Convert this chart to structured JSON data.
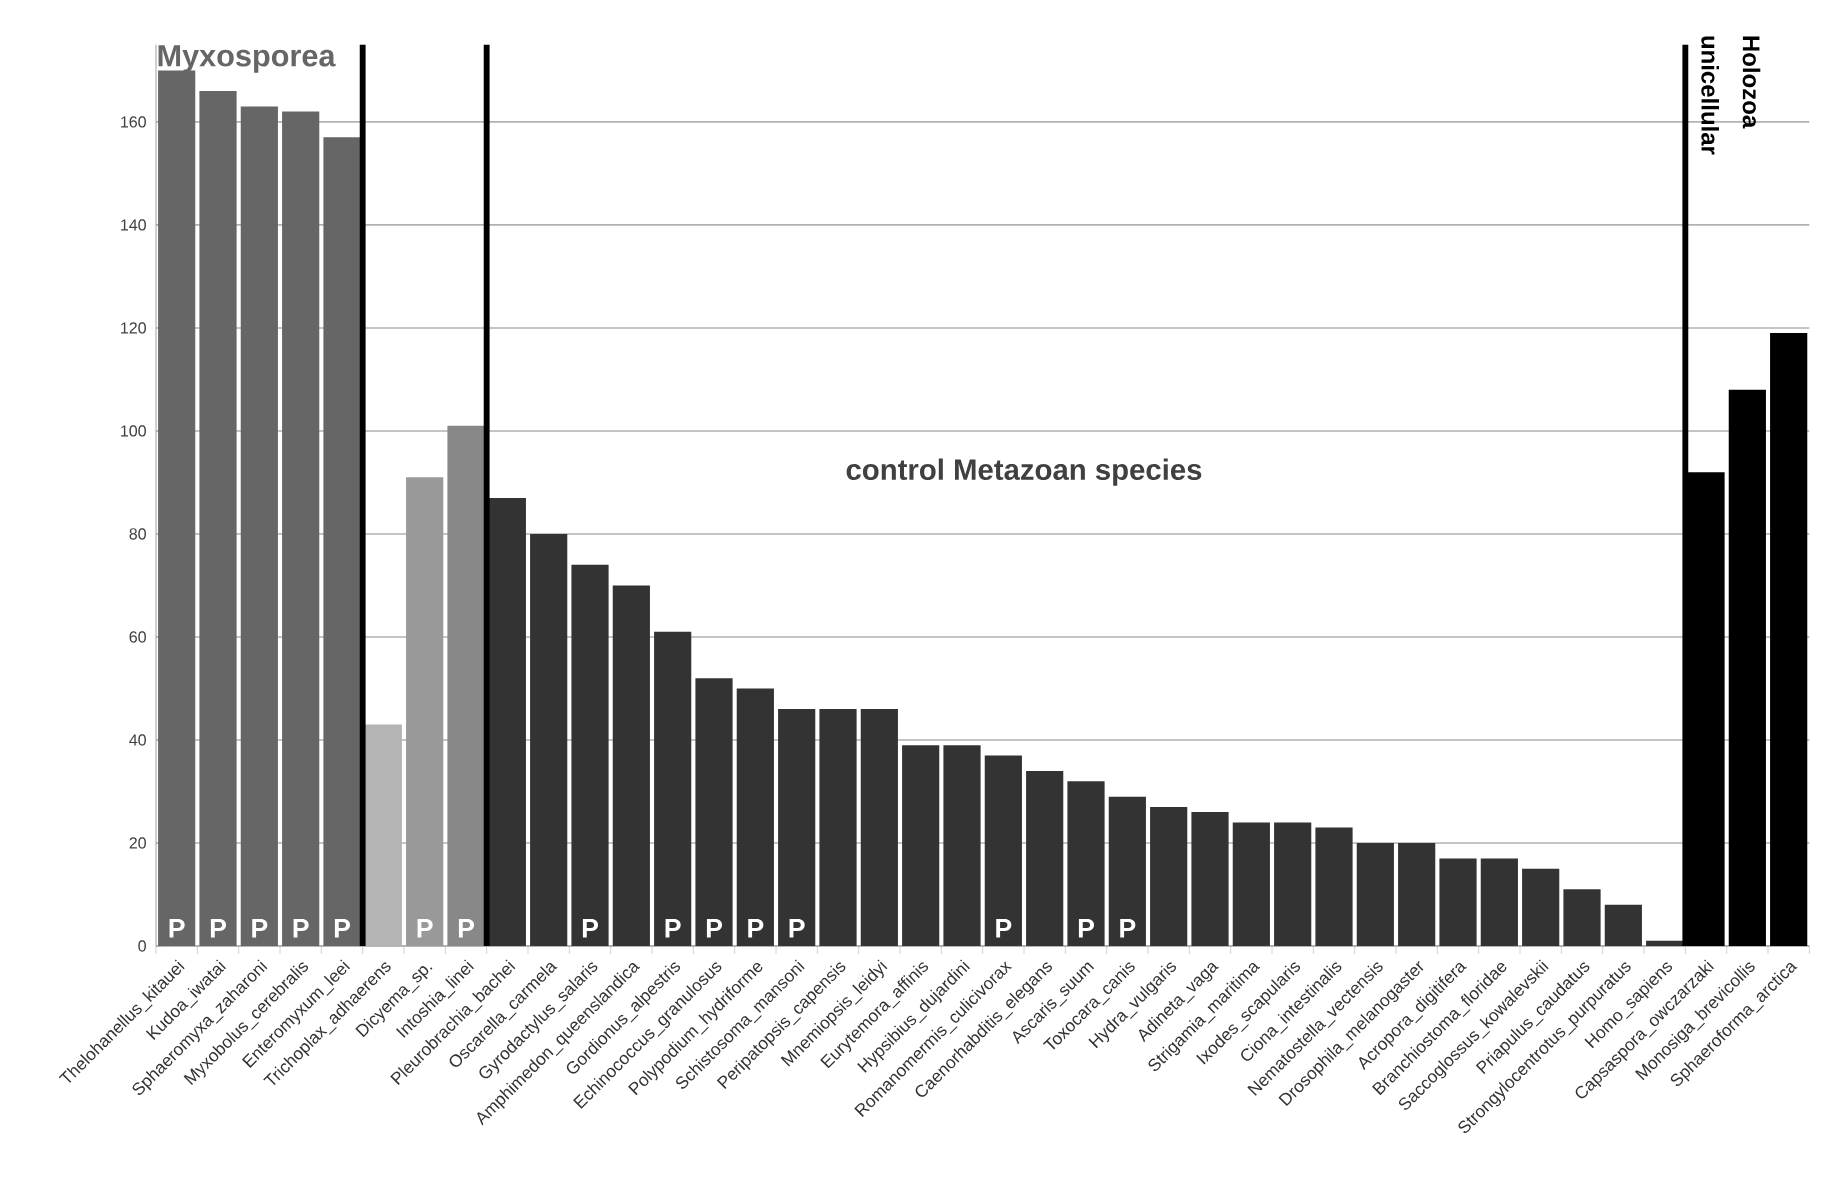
{
  "chart_data": {
    "type": "bar",
    "categories": [
      "Thelohanellus_kitauei",
      "Kudoa_iwatai",
      "Sphaeromyxa_zaharoni",
      "Myxobolus_cerebralis",
      "Enteromyxum_leei",
      "Trichoplax_adhaerens",
      "Dicyema_sp.",
      "Intoshia_linei",
      "Pleurobrachia_bachei",
      "Oscarella_carmela",
      "Gyrodactylus_salaris",
      "Amphimedon_queenslandica",
      "Gordionus_alpestris",
      "Echinococcus_granulosus",
      "Polypodium_hydriforme",
      "Schistosoma_mansoni",
      "Peripatopsis_capensis",
      "Mnemiopsis_leidyi",
      "Eurytemora_affinis",
      "Hypsibius_dujardini",
      "Romanomermis_culicivorax",
      "Caenorhabditis_elegans",
      "Ascaris_suum",
      "Toxocara_canis",
      "Hydra_vulgaris",
      "Adineta_vaga",
      "Strigamia_maritima",
      "Ixodes_scapularis",
      "Ciona_intestinalis",
      "Nematostella_vectensis",
      "Drosophila_melanogaster",
      "Acropora_digitifera",
      "Branchiostoma_floridae",
      "Saccoglossus_kowalevskii",
      "Priapulus_caudatus",
      "Strongylocentrotus_purpuratus",
      "Homo_sapiens",
      "Capsaspora_owczarzaki",
      "Monosiga_brevicollis",
      "Sphaeroforma_arctica"
    ],
    "values": [
      170,
      166,
      163,
      162,
      157,
      43,
      91,
      101,
      87,
      80,
      74,
      70,
      61,
      52,
      50,
      46,
      46,
      46,
      39,
      39,
      37,
      34,
      32,
      29,
      27,
      26,
      24,
      24,
      23,
      20,
      20,
      17,
      17,
      15,
      11,
      8,
      1,
      92,
      108,
      119
    ],
    "colors": [
      "#666666",
      "#666666",
      "#666666",
      "#666666",
      "#666666",
      "#b4b4b4",
      "#999999",
      "#888888",
      "#333333",
      "#333333",
      "#333333",
      "#333333",
      "#333333",
      "#333333",
      "#333333",
      "#333333",
      "#333333",
      "#333333",
      "#333333",
      "#333333",
      "#333333",
      "#333333",
      "#333333",
      "#333333",
      "#333333",
      "#333333",
      "#333333",
      "#333333",
      "#333333",
      "#333333",
      "#333333",
      "#333333",
      "#333333",
      "#333333",
      "#333333",
      "#333333",
      "#333333",
      "#000000",
      "#000000",
      "#000000"
    ],
    "ylim": [
      0,
      175
    ],
    "yticks": [
      0,
      20,
      40,
      60,
      80,
      100,
      120,
      140,
      160
    ],
    "grid": "y",
    "annotations": [
      "Myxosporea",
      "control Metazoan species",
      "unicellular",
      "Holozoa",
      {
        "text": "P",
        "x": "Thelohanellus_kitauei",
        "y": 0
      },
      {
        "text": "P",
        "x": "Kudoa_iwatai",
        "y": 0
      },
      {
        "text": "P",
        "x": "Sphaeromyxa_zaharoni",
        "y": 0
      },
      {
        "text": "P",
        "x": "Myxobolus_cerebralis",
        "y": 0
      },
      {
        "text": "P",
        "x": "Enteromyxum_leei",
        "y": 0
      },
      {
        "text": "P",
        "x": "Dicyema_sp.",
        "y": 0
      },
      {
        "text": "P",
        "x": "Intoshia_linei",
        "y": 0
      },
      {
        "text": "P",
        "x": "Gyrodactylus_salaris",
        "y": 0
      },
      {
        "text": "P",
        "x": "Gordionus_alpestris",
        "y": 0
      },
      {
        "text": "P",
        "x": "Echinococcus_granulosus",
        "y": 0
      },
      {
        "text": "P",
        "x": "Polypodium_hydriforme",
        "y": 0
      },
      {
        "text": "P",
        "x": "Schistosoma_mansoni",
        "y": 0
      },
      {
        "text": "P",
        "x": "Romanomermis_culicivorax",
        "y": 0
      },
      {
        "text": "P",
        "x": "Ascaris_suum",
        "y": 0
      },
      {
        "text": "P",
        "x": "Toxocara_canis",
        "y": 0
      }
    ]
  }
}
